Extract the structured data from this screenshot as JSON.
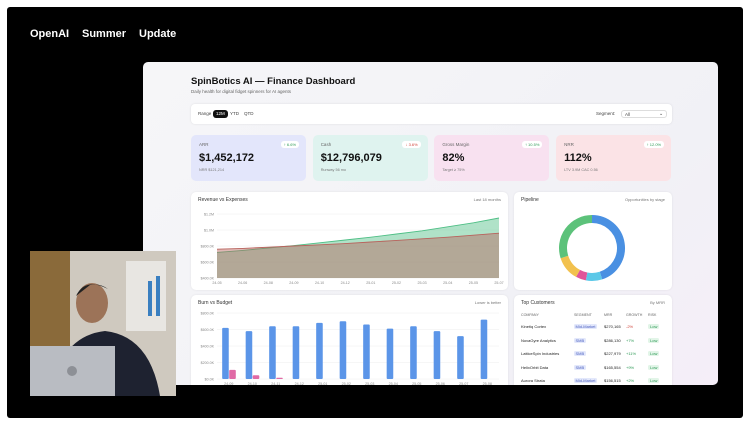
{
  "nav": [
    "OpenAI",
    "Summer",
    "Update"
  ],
  "dashboard": {
    "title": "SpinBotics AI — Finance Dashboard",
    "subtitle": "Daily health for digital fidget spinners for AI agents",
    "filters": {
      "label": "Range",
      "options": [
        "12M",
        "YTD",
        "QTD"
      ],
      "selected": 0,
      "segment_label": "Segment:",
      "segment_value": "All"
    },
    "kpis": [
      {
        "label": "ARR",
        "value": "$1,452,172",
        "change": "↑ 6.6%",
        "note": "NRR $121,214",
        "color": "#e3e6fb",
        "change_color": "#2f9a57"
      },
      {
        "label": "Cash",
        "value": "$12,796,079",
        "change": "↓ 3.6%",
        "note": "Runway 56 mo",
        "color": "#dff3ef",
        "change_color": "#d0443b"
      },
      {
        "label": "Gross Margin",
        "value": "82%",
        "change": "↑ 10.5%",
        "note": "Target ≥ 75%",
        "color": "#f8e1f0",
        "change_color": "#2f9a57"
      },
      {
        "label": "NRR",
        "value": "112%",
        "change": "↑ 12.0%",
        "note": "LTV 3.9M CAC 0.56",
        "color": "#fbe3e6",
        "change_color": "#2f9a57"
      }
    ]
  },
  "chart_data": [
    {
      "type": "line",
      "title": "Revenue vs Expenses",
      "subtitle": "Last 18 months",
      "categories": [
        "24-05",
        "24-06",
        "24-08",
        "24-09",
        "24-10",
        "24-12",
        "25-01",
        "25-02",
        "25-03",
        "25-04",
        "25-05",
        "25-07"
      ],
      "series": [
        {
          "color": "#4fbf86",
          "values": [
            720000,
            745000,
            775000,
            805000,
            840000,
            875000,
            910000,
            950000,
            990000,
            1040000,
            1090000,
            1150000
          ]
        },
        {
          "color": "#b8625c",
          "values": [
            760000,
            770000,
            785000,
            800000,
            815000,
            830000,
            850000,
            870000,
            890000,
            910000,
            935000,
            960000
          ]
        }
      ],
      "ylim": [
        400000,
        1250000
      ],
      "yticks": [
        {
          "value": 400000,
          "label": "$400.0K"
        },
        {
          "value": 600000,
          "label": "$600.0K"
        },
        {
          "value": 800000,
          "label": "$800.0K"
        },
        {
          "value": 1000000,
          "label": "$1.0M"
        },
        {
          "value": 1200000,
          "label": "$1.2M"
        }
      ],
      "grid": true
    },
    {
      "type": "pie",
      "title": "Pipeline",
      "subtitle": "Opportunities by stage",
      "values": [
        45,
        8,
        5,
        12,
        30
      ],
      "colors": [
        "#4a90e2",
        "#5bc8e8",
        "#e0559a",
        "#f2c14e",
        "#5cc27a"
      ]
    },
    {
      "type": "bar",
      "title": "Burn vs Budget",
      "subtitle": "Lower is better",
      "categories": [
        "24-09",
        "24-10",
        "24-11",
        "24-12",
        "25-01",
        "25-02",
        "25-03",
        "25-04",
        "25-05",
        "25-06",
        "25-07",
        "25-08"
      ],
      "series": [
        {
          "color": "#5b95e8",
          "values": [
            620000,
            580000,
            640000,
            640000,
            680000,
            700000,
            660000,
            610000,
            640000,
            580000,
            520000,
            720000
          ]
        },
        {
          "color": "#e06aa5",
          "values": [
            110000,
            45000,
            15000,
            0,
            0,
            0,
            0,
            0,
            0,
            0,
            0,
            0
          ]
        }
      ],
      "ylim": [
        0,
        800000
      ],
      "yticks": [
        {
          "value": 0,
          "label": "$0.0K"
        },
        {
          "value": 200000,
          "label": "$200.0K"
        },
        {
          "value": 400000,
          "label": "$400.0K"
        },
        {
          "value": 600000,
          "label": "$600.0K"
        },
        {
          "value": 800000,
          "label": "$800.0K"
        }
      ],
      "grid": true
    }
  ],
  "table": {
    "title": "Top Customers",
    "subtitle": "By MRR",
    "columns": [
      "COMPANY",
      "SEGMENT",
      "MRR",
      "GROWTH",
      "RISK"
    ],
    "rows": [
      [
        "Kinetiq Cortex",
        "Mid-Market",
        "$270,165",
        "-2%",
        "Low"
      ],
      [
        "NovaGyre Analytics",
        "SMB",
        "$286,130",
        "+7%",
        "Low"
      ],
      [
        "LatticeSpin Industries",
        "SMB",
        "$227,979",
        "+11%",
        "Low"
      ],
      [
        "HelixOrbit Data",
        "SMB",
        "$165,554",
        "+9%",
        "Low"
      ],
      [
        "Aurora Strata",
        "Mid-Market",
        "$156,515",
        "+2%",
        "Low"
      ]
    ]
  }
}
